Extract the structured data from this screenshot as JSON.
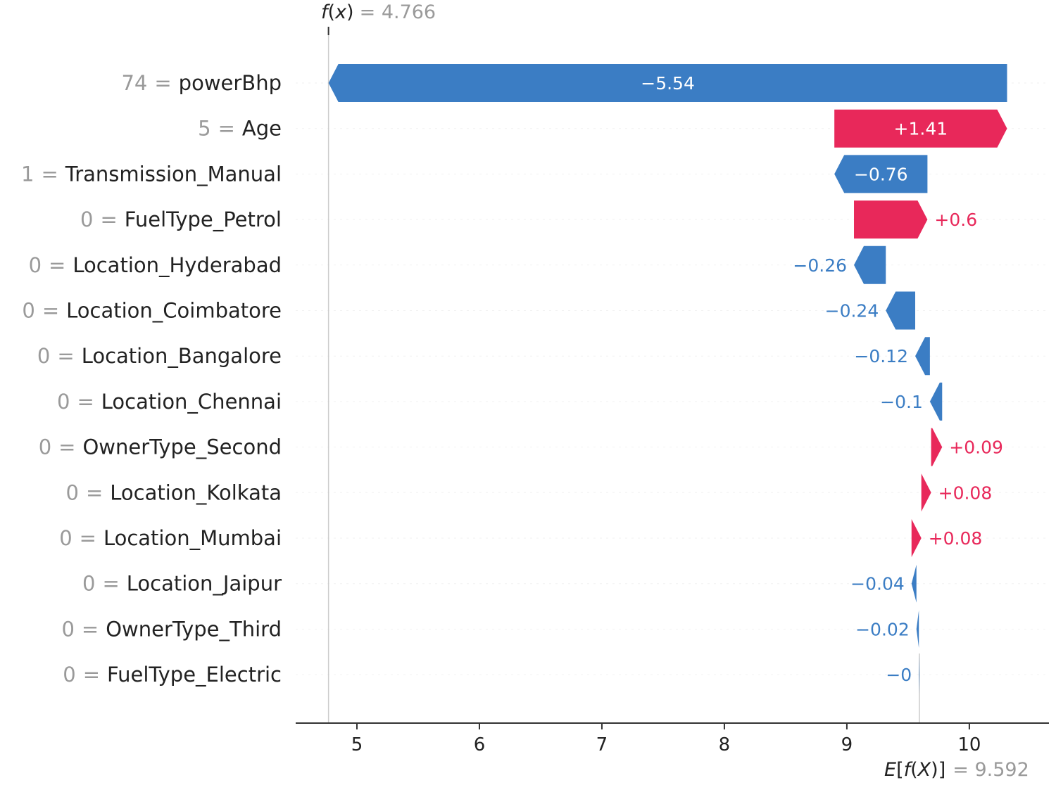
{
  "chart_data": {
    "type": "bar",
    "subtype": "shap-waterfall",
    "fx": {
      "label": "f(x)",
      "value": "4.766"
    },
    "expected": {
      "label": "E[f(X)]",
      "value": "9.592"
    },
    "base_value": 9.592,
    "xlim": [
      4.5,
      10.65
    ],
    "x_ticks": [
      "5",
      "6",
      "7",
      "8",
      "9",
      "10"
    ],
    "colors": {
      "positive": "#e8285a",
      "negative": "#3b7dc4"
    },
    "features": [
      {
        "value": "74",
        "name": "powerBhp",
        "contribution": -5.54,
        "label": "−5.54"
      },
      {
        "value": "5",
        "name": "Age",
        "contribution": 1.41,
        "label": "+1.41"
      },
      {
        "value": "1",
        "name": "Transmission_Manual",
        "contribution": -0.76,
        "label": "−0.76"
      },
      {
        "value": "0",
        "name": "FuelType_Petrol",
        "contribution": 0.6,
        "label": "+0.6"
      },
      {
        "value": "0",
        "name": "Location_Hyderabad",
        "contribution": -0.26,
        "label": "−0.26"
      },
      {
        "value": "0",
        "name": "Location_Coimbatore",
        "contribution": -0.24,
        "label": "−0.24"
      },
      {
        "value": "0",
        "name": "Location_Bangalore",
        "contribution": -0.12,
        "label": "−0.12"
      },
      {
        "value": "0",
        "name": "Location_Chennai",
        "contribution": -0.1,
        "label": "−0.1"
      },
      {
        "value": "0",
        "name": "OwnerType_Second",
        "contribution": 0.09,
        "label": "+0.09"
      },
      {
        "value": "0",
        "name": "Location_Kolkata",
        "contribution": 0.08,
        "label": "+0.08"
      },
      {
        "value": "0",
        "name": "Location_Mumbai",
        "contribution": 0.08,
        "label": "+0.08"
      },
      {
        "value": "0",
        "name": "Location_Jaipur",
        "contribution": -0.04,
        "label": "−0.04"
      },
      {
        "value": "0",
        "name": "OwnerType_Third",
        "contribution": -0.02,
        "label": "−0.02"
      },
      {
        "value": "0",
        "name": "FuelType_Electric",
        "contribution": -0.004,
        "label": "−0"
      }
    ]
  }
}
